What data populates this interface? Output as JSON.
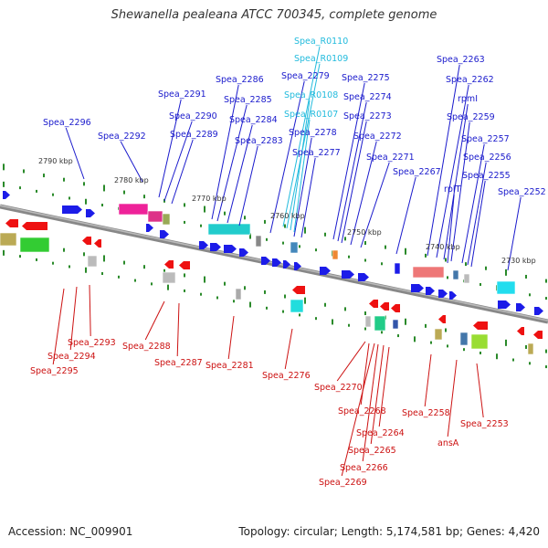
{
  "title": "Shewanella pealeana ATCC 700345, complete genome",
  "footer": {
    "accession": "Accession: NC_009901",
    "summary": "Topology: circular; Length: 5,174,581 bp; Genes: 4,420"
  },
  "colors": {
    "forward_label": "#1a1acc",
    "reverse_label": "#cc1111",
    "rna_label": "#22bbdd",
    "backbone": "#888888",
    "tick": "#2a8a2a"
  },
  "scale_labels": [
    "2790 kbp",
    "2780 kbp",
    "2770 kbp",
    "2760 kbp",
    "2750 kbp",
    "2740 kbp",
    "2730 kbp"
  ],
  "forward_labels": [
    "Spea_2296",
    "Spea_2292",
    "Spea_2291",
    "Spea_2290",
    "Spea_2289",
    "Spea_2286",
    "Spea_2285",
    "Spea_2284",
    "Spea_2283",
    "Spea_2279",
    "Spea_2278",
    "Spea_2277",
    "Spea_2275",
    "Spea_2274",
    "Spea_2273",
    "Spea_2272",
    "Spea_2271",
    "Spea_2267",
    "Spea_2263",
    "Spea_2262",
    "rpmI",
    "Spea_2259",
    "Spea_2257",
    "Spea_2256",
    "Spea_2255",
    "rplT",
    "Spea_2252"
  ],
  "rna_labels": [
    "Spea_R0110",
    "Spea_R0109",
    "Spea_R0108",
    "Spea_R0107"
  ],
  "reverse_labels": [
    "Spea_2293",
    "Spea_2294",
    "Spea_2295",
    "Spea_2288",
    "Spea_2287",
    "Spea_2281",
    "Spea_2276",
    "Spea_2270",
    "Spea_2268",
    "Spea_2264",
    "Spea_2265",
    "Spea_2266",
    "Spea_2269",
    "Spea_2258",
    "Spea_2253",
    "ansA"
  ]
}
